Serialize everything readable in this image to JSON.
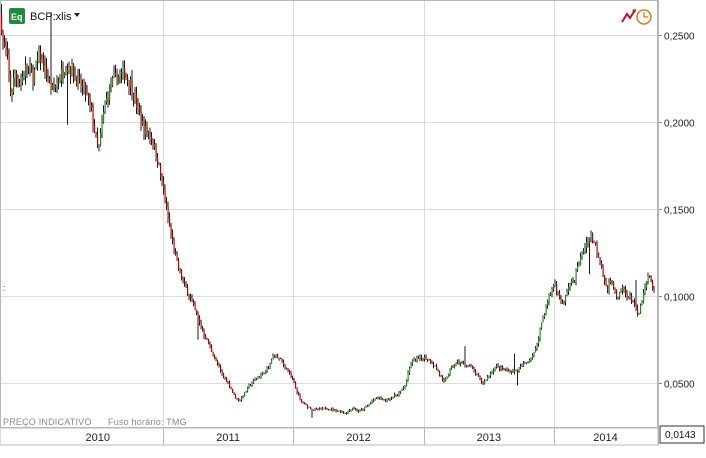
{
  "toolbar": {
    "instrument_badge": "Eq",
    "symbol": "BCP:xlis",
    "dropdown_icon": "caret-down-icon",
    "right_icons": [
      "chart-type-icon",
      "clock-icon"
    ]
  },
  "footer_note": {
    "price_type": "PREÇO INDICATIVO",
    "timezone": "Fuso horário: TMG"
  },
  "colors": {
    "up": "#1f8f1f",
    "down": "#c00000",
    "grid": "#dcdcdc",
    "badge": "#1e8c3a"
  },
  "chart_data": {
    "type": "candlestick",
    "title": "",
    "xlabel": "",
    "ylabel": "",
    "x_ticks": [
      "2010",
      "2011",
      "2012",
      "2013",
      "2014"
    ],
    "y_ticks": [
      "0,0500",
      "0,1000",
      "0,1500",
      "0,2000",
      "0,2500"
    ],
    "y_tick_values": [
      0.05,
      0.1,
      0.15,
      0.2,
      0.25
    ],
    "ylim": [
      0.025,
      0.27
    ],
    "xlim": [
      2009.75,
      2014.79
    ],
    "last_price": "0,0143",
    "grid": true,
    "price_path": [
      [
        2009.75,
        0.262
      ],
      [
        2009.77,
        0.245
      ],
      [
        2009.8,
        0.238
      ],
      [
        2009.83,
        0.215
      ],
      [
        2009.86,
        0.228
      ],
      [
        2009.9,
        0.222
      ],
      [
        2009.95,
        0.232
      ],
      [
        2010.0,
        0.226
      ],
      [
        2010.05,
        0.238
      ],
      [
        2010.1,
        0.228
      ],
      [
        2010.15,
        0.218
      ],
      [
        2010.2,
        0.225
      ],
      [
        2010.25,
        0.233
      ],
      [
        2010.3,
        0.23
      ],
      [
        2010.35,
        0.222
      ],
      [
        2010.4,
        0.218
      ],
      [
        2010.45,
        0.205
      ],
      [
        2010.5,
        0.182
      ],
      [
        2010.55,
        0.21
      ],
      [
        2010.6,
        0.222
      ],
      [
        2010.65,
        0.226
      ],
      [
        2010.7,
        0.228
      ],
      [
        2010.75,
        0.222
      ],
      [
        2010.8,
        0.208
      ],
      [
        2010.85,
        0.196
      ],
      [
        2010.9,
        0.193
      ],
      [
        2010.95,
        0.18
      ],
      [
        2011.0,
        0.16
      ],
      [
        2011.05,
        0.138
      ],
      [
        2011.1,
        0.12
      ],
      [
        2011.15,
        0.108
      ],
      [
        2011.2,
        0.1
      ],
      [
        2011.25,
        0.09
      ],
      [
        2011.3,
        0.08
      ],
      [
        2011.35,
        0.072
      ],
      [
        2011.4,
        0.063
      ],
      [
        2011.45,
        0.055
      ],
      [
        2011.5,
        0.05
      ],
      [
        2011.55,
        0.042
      ],
      [
        2011.58,
        0.04
      ],
      [
        2011.62,
        0.044
      ],
      [
        2011.65,
        0.048
      ],
      [
        2011.7,
        0.052
      ],
      [
        2011.75,
        0.055
      ],
      [
        2011.8,
        0.058
      ],
      [
        2011.85,
        0.067
      ],
      [
        2011.9,
        0.063
      ],
      [
        2011.95,
        0.058
      ],
      [
        2012.0,
        0.05
      ],
      [
        2012.05,
        0.04
      ],
      [
        2012.1,
        0.037
      ],
      [
        2012.15,
        0.035
      ],
      [
        2012.2,
        0.035
      ],
      [
        2012.25,
        0.036
      ],
      [
        2012.3,
        0.035
      ],
      [
        2012.35,
        0.034
      ],
      [
        2012.4,
        0.033
      ],
      [
        2012.45,
        0.036
      ],
      [
        2012.5,
        0.034
      ],
      [
        2012.55,
        0.036
      ],
      [
        2012.6,
        0.04
      ],
      [
        2012.65,
        0.042
      ],
      [
        2012.7,
        0.04
      ],
      [
        2012.75,
        0.042
      ],
      [
        2012.8,
        0.044
      ],
      [
        2012.85,
        0.048
      ],
      [
        2012.9,
        0.062
      ],
      [
        2012.95,
        0.064
      ],
      [
        2013.0,
        0.065
      ],
      [
        2013.05,
        0.063
      ],
      [
        2013.1,
        0.058
      ],
      [
        2013.15,
        0.05
      ],
      [
        2013.2,
        0.058
      ],
      [
        2013.25,
        0.062
      ],
      [
        2013.3,
        0.061
      ],
      [
        2013.35,
        0.06
      ],
      [
        2013.4,
        0.055
      ],
      [
        2013.45,
        0.05
      ],
      [
        2013.5,
        0.055
      ],
      [
        2013.55,
        0.06
      ],
      [
        2013.6,
        0.058
      ],
      [
        2013.65,
        0.057
      ],
      [
        2013.7,
        0.057
      ],
      [
        2013.75,
        0.06
      ],
      [
        2013.8,
        0.063
      ],
      [
        2013.85,
        0.068
      ],
      [
        2013.9,
        0.085
      ],
      [
        2013.95,
        0.098
      ],
      [
        2014.0,
        0.108
      ],
      [
        2014.03,
        0.1
      ],
      [
        2014.07,
        0.095
      ],
      [
        2014.1,
        0.105
      ],
      [
        2014.15,
        0.11
      ],
      [
        2014.2,
        0.122
      ],
      [
        2014.25,
        0.132
      ],
      [
        2014.28,
        0.135
      ],
      [
        2014.32,
        0.128
      ],
      [
        2014.36,
        0.118
      ],
      [
        2014.4,
        0.103
      ],
      [
        2014.44,
        0.11
      ],
      [
        2014.48,
        0.097
      ],
      [
        2014.52,
        0.105
      ],
      [
        2014.56,
        0.1
      ],
      [
        2014.6,
        0.098
      ],
      [
        2014.64,
        0.088
      ],
      [
        2014.68,
        0.1
      ],
      [
        2014.72,
        0.112
      ],
      [
        2014.75,
        0.105
      ],
      [
        2014.78,
        0.1
      ]
    ]
  }
}
